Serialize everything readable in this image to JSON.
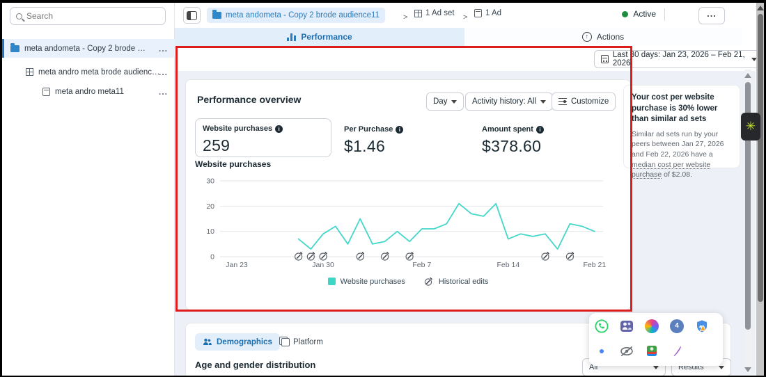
{
  "ui": {
    "more": "...",
    "breadcrumb_separator": ">"
  },
  "sidebar": {
    "search_placeholder": "Search",
    "items": [
      {
        "label": "meta andometa - Copy 2 brode audienc...",
        "icon": "campaign-folder"
      },
      {
        "label": "meta andro meta brode audience111",
        "icon": "ad-set-grid"
      },
      {
        "label": "meta andro meta11",
        "icon": "ad-page"
      }
    ]
  },
  "topbar": {
    "breadcrumbs": [
      {
        "label": "meta andometa - Copy 2 brode audience11",
        "icon": "campaign-folder"
      },
      {
        "label": "1 Ad set",
        "icon": "ad-set-grid"
      },
      {
        "label": "1 Ad",
        "icon": "ad-page"
      }
    ],
    "status_label": "Active"
  },
  "tabs": {
    "performance": "Performance",
    "actions": "Actions"
  },
  "toolbar": {
    "date_range": "Last 30 days: Jan 23, 2026 – Feb 21, 2026"
  },
  "overview": {
    "title": "Performance overview",
    "controls": {
      "interval": "Day",
      "activity": "Activity history: All",
      "customize": "Customize"
    },
    "metrics": [
      {
        "label": "Website purchases",
        "value": "259"
      },
      {
        "label": "Per Purchase",
        "value": "$1.46"
      },
      {
        "label": "Amount spent",
        "value": "$378.60"
      }
    ],
    "chart_heading": "Website purchases"
  },
  "chart_data": {
    "type": "line",
    "title": "Website purchases",
    "series_name": "Website purchases",
    "x_range": [
      "Jan 23, 2026",
      "Feb 21, 2026"
    ],
    "x_tick_labels": [
      "Jan 23",
      "Jan 30",
      "Feb 7",
      "Feb 14",
      "Feb 21"
    ],
    "x_tick_day_indices": [
      0,
      7,
      15,
      22,
      29
    ],
    "y_ticks": [
      0,
      10,
      20,
      30
    ],
    "ylim": [
      0,
      30
    ],
    "values_by_day": [
      null,
      null,
      null,
      null,
      null,
      7,
      3,
      9,
      12,
      5,
      15,
      5,
      6,
      10,
      6,
      11,
      11,
      13,
      21,
      17,
      16,
      21,
      7,
      9,
      8,
      9,
      3,
      13,
      12,
      10
    ],
    "historical_edit_day_indices": [
      5,
      6,
      7,
      10,
      12,
      14,
      25,
      27
    ],
    "line_color": "#42d7c8",
    "grid": "horizontal",
    "legend": [
      {
        "label": "Website purchases",
        "swatch": "teal-square"
      },
      {
        "label": "Historical edits",
        "swatch": "pencil-circle-icon"
      }
    ]
  },
  "tip": {
    "heading": "Your cost per website purchase is 30% lower than similar ad sets",
    "body_pre": "Similar ad sets run by your peers between Jan 27, 2026 and Feb 22, 2026 have a ",
    "body_underlined": "median cost per website purchase",
    "body_post": " of $2.08."
  },
  "bottom": {
    "tab_demographics": "Demographics",
    "tab_platform": "Platform",
    "heading": "Age and gender distribution",
    "filter_all": "All",
    "filter_results": "Results"
  },
  "app_dock": {
    "icons": [
      "whatsapp",
      "ms-teams",
      "copilot",
      "chat",
      "photos-warning",
      "chrome",
      "hidden-icons",
      "bluestacks",
      "pen"
    ],
    "chat_badge_count": "4"
  },
  "colors": {
    "accent_blue": "#1b74c8",
    "teal_line": "#42d7c8",
    "status_green": "#1e8e3e",
    "annotation_red": "#dd1d1d"
  }
}
